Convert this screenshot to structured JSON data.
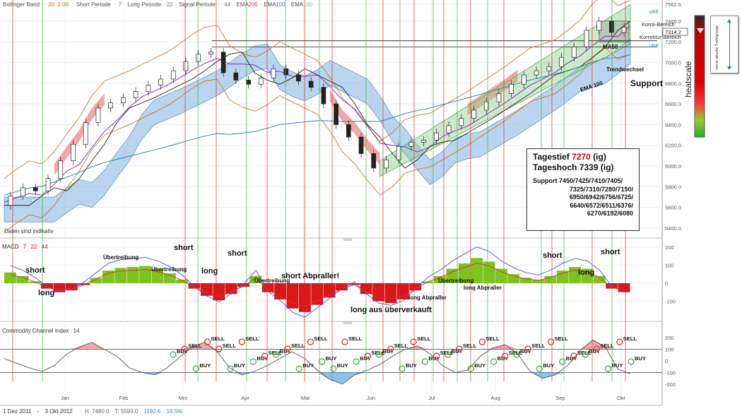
{
  "chart_data": {
    "type": "candlestick",
    "header_indicators": [
      {
        "label": "Bollinger Band",
        "params": [
          "20",
          "2.00"
        ],
        "color": "#d06a10"
      },
      {
        "label": "Short Periode",
        "params": [
          "7"
        ],
        "color": "#777777"
      },
      {
        "label": "Long Periode",
        "params": [
          "22"
        ],
        "color": "#777777"
      },
      {
        "label": "Signal Periode",
        "params": [
          "44"
        ],
        "color": "#777777"
      },
      {
        "label": "EMA",
        "params": [
          "200"
        ],
        "color": "#d04040"
      },
      {
        "label": "EMA",
        "params": [
          "100"
        ],
        "color": "#2f8ad0"
      },
      {
        "label": "EMA",
        "params": [
          "100"
        ],
        "color": "#8fbf8f"
      }
    ],
    "y_axis": {
      "ticks": [
        "7562.6",
        "7400.0",
        "7200.0",
        "7000.0",
        "6800.0",
        "6600.0",
        "6400.0",
        "6200.0",
        "6000.0",
        "5800.0",
        "5600.0",
        "5400.0"
      ],
      "range": [
        5400,
        7562.6
      ]
    },
    "x_axis": {
      "ticks": [
        "Jan",
        "Feb",
        "Mrz",
        "Apr",
        "Mai",
        "Jun",
        "Jul",
        "Aug",
        "Sep",
        "Okt"
      ]
    },
    "close_series": [
      5620,
      5710,
      5790,
      5760,
      5880,
      6050,
      6210,
      6420,
      6560,
      6610,
      6660,
      6720,
      6780,
      6840,
      6920,
      7010,
      7080,
      7100,
      6900,
      6830,
      6790,
      6850,
      6940,
      6880,
      6820,
      6760,
      6600,
      6400,
      6280,
      6120,
      5980,
      6060,
      6190,
      6230,
      6250,
      6320,
      6390,
      6460,
      6540,
      6620,
      6700,
      6790,
      6880,
      6920,
      6960,
      7050,
      7150,
      7310,
      7400,
      7290,
      7340
    ],
    "price_labels": {
      "current": "7314.2",
      "current_color": "#e00000"
    },
    "annotations": {
      "zones": [
        "Konsi-Bereich",
        "Korrektur-Bereich"
      ],
      "bands": [
        "oBB",
        "uBB"
      ],
      "lines": [
        "MA50",
        "EMA 100"
      ],
      "events": [
        "Trendwechsel",
        "Support"
      ],
      "daten": "Daten sind indikativ"
    },
    "info_box": {
      "low_label": "Tagestief",
      "low_value": "7270",
      "low_suffix": "(ig)",
      "high_label": "Tageshoch",
      "high_value": "7339",
      "high_suffix": "(ig)",
      "support_title": "Support",
      "support_lines": [
        "7450/7425/7410/7405/",
        "7325/7310/7280/7150/",
        "6950/6942/6756/6725/",
        "6640/6572/6511/6376/",
        "6270/6192/6080"
      ]
    },
    "heatscale": {
      "label": "heatscale",
      "legend_text": "meine aktuelle Tradingrange"
    },
    "macd": {
      "title": "MACD",
      "params": [
        "7",
        "22",
        "44"
      ],
      "y_ticks": [
        "200",
        "100",
        "0",
        "-100"
      ],
      "histogram": [
        60,
        40,
        10,
        -30,
        -50,
        -40,
        -10,
        30,
        70,
        85,
        90,
        95,
        80,
        55,
        20,
        -30,
        -70,
        -95,
        -60,
        -20,
        40,
        -50,
        -90,
        -140,
        -160,
        -120,
        -80,
        -40,
        -10,
        -60,
        -100,
        -110,
        -90,
        -40,
        10,
        40,
        80,
        110,
        140,
        120,
        80,
        50,
        30,
        20,
        40,
        70,
        90,
        80,
        40,
        -30,
        -50
      ],
      "annotations": [
        "short",
        "long",
        "Übertreibung",
        "Übertreibung",
        "short",
        "long",
        "short",
        "Übertreibung",
        "short Abpraller!",
        "long aus überverkauft",
        "long Abpraller",
        "Übertreibung",
        "long Abpraller",
        "short",
        "long",
        "short"
      ]
    },
    "cci": {
      "title": "Commodity Channel Index",
      "params": [
        "14"
      ],
      "y_ticks": [
        "200",
        "100",
        "0",
        "-100",
        "-200"
      ],
      "values": [
        20,
        -20,
        -60,
        -90,
        -40,
        60,
        120,
        160,
        100,
        40,
        -60,
        -100,
        -120,
        -60,
        30,
        120,
        160,
        80,
        -60,
        -120,
        -90,
        -40,
        20,
        80,
        20,
        -80,
        -160,
        -200,
        -120,
        -80,
        -30,
        40,
        100,
        130,
        60,
        -40,
        -100,
        -80,
        40,
        110,
        140,
        60,
        -90,
        -150,
        -120,
        -40,
        90,
        180,
        120,
        -70,
        -110
      ],
      "signals": [
        "BUY",
        "SELL",
        "BUY",
        "SELL",
        "SELL",
        "BUY",
        "SELL",
        "BUY",
        "SELL",
        "BUY",
        "SELL",
        "BUY",
        "SELL",
        "BUY",
        "BUY",
        "SELL",
        "BUY",
        "SELL",
        "BUY",
        "SELL",
        "BUY",
        "SELL",
        "BUY",
        "SELL",
        "BUY",
        "SELL",
        "BUY",
        "SELL",
        "BUY",
        "SELL",
        "BUY",
        "SELL",
        "BUY",
        "SELL",
        "BUY",
        "SELL",
        "BUY",
        "SELL",
        "BUY",
        "SELL",
        "BUY"
      ]
    }
  },
  "footer": {
    "start": "1 Dez 2011",
    "sep": "-",
    "end": "3 Okt 2012",
    "stats": [
      {
        "label": "H:",
        "value": "7480.0",
        "color": "#666666"
      },
      {
        "label": "T:",
        "value": "5593.0",
        "color": "#666666"
      },
      {
        "label": "",
        "value": "1192.6",
        "color": "#2f7fd0"
      },
      {
        "label": "",
        "value": "19.5%",
        "color": "#2f7fd0"
      }
    ]
  }
}
